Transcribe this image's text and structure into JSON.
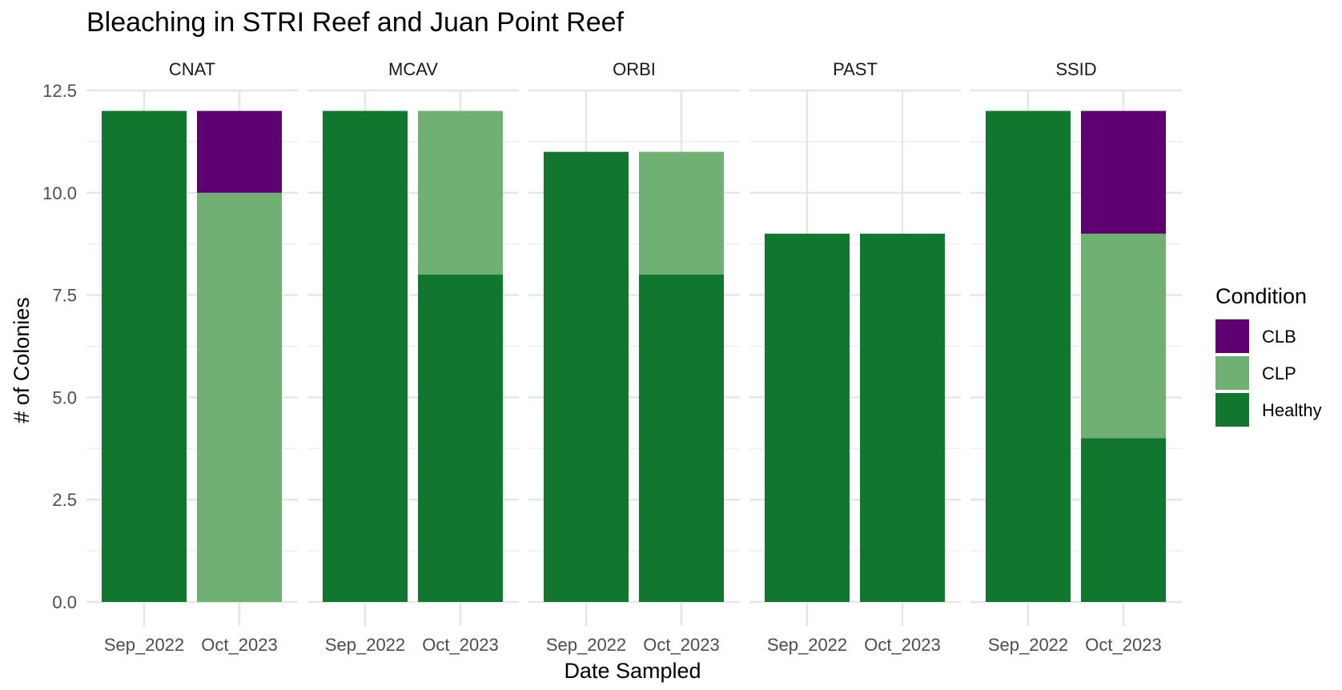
{
  "chart_data": {
    "type": "bar",
    "title": "Bleaching in STRI Reef and Juan Point Reef",
    "xlabel": "Date Sampled",
    "ylabel": "# of Colonies",
    "ylim": [
      0,
      12.5
    ],
    "yticks": [
      "0.0",
      "2.5",
      "5.0",
      "7.5",
      "10.0",
      "12.5"
    ],
    "grid": true,
    "stacked": true,
    "categories": [
      "Sep_2022",
      "Oct_2023"
    ],
    "legend": {
      "title": "Condition",
      "position": "right",
      "entries": [
        {
          "name": "CLB",
          "color": "#5e0070"
        },
        {
          "name": "CLP",
          "color": "#70b073"
        },
        {
          "name": "Healthy",
          "color": "#11762e"
        }
      ]
    },
    "facets": [
      {
        "name": "CNAT",
        "series": {
          "Healthy": [
            12,
            0
          ],
          "CLP": [
            0,
            10
          ],
          "CLB": [
            0,
            2
          ]
        }
      },
      {
        "name": "MCAV",
        "series": {
          "Healthy": [
            12,
            8
          ],
          "CLP": [
            0,
            4
          ],
          "CLB": [
            0,
            0
          ]
        }
      },
      {
        "name": "ORBI",
        "series": {
          "Healthy": [
            11,
            8
          ],
          "CLP": [
            0,
            3
          ],
          "CLB": [
            0,
            0
          ]
        }
      },
      {
        "name": "PAST",
        "series": {
          "Healthy": [
            9,
            9
          ],
          "CLP": [
            0,
            0
          ],
          "CLB": [
            0,
            0
          ]
        }
      },
      {
        "name": "SSID",
        "series": {
          "Healthy": [
            12,
            4
          ],
          "CLP": [
            0,
            5
          ],
          "CLB": [
            0,
            3
          ]
        }
      }
    ]
  }
}
